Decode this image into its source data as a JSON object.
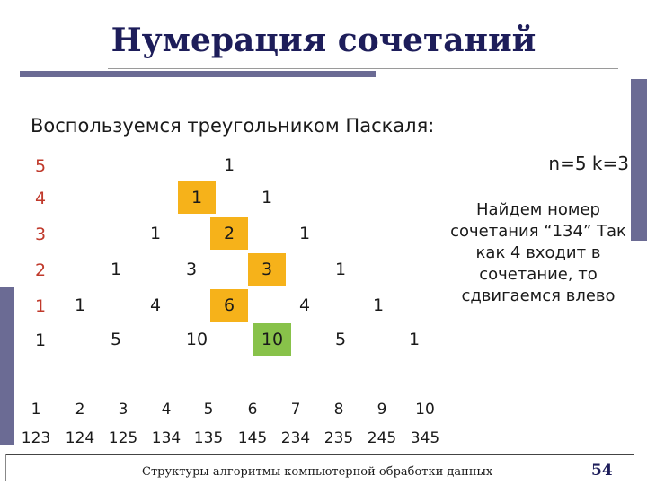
{
  "title": "Нумерация сочетаний",
  "subtitle": "Воспользуемся треугольником Паскаля:",
  "params": "n=5 k=3",
  "note": "Найдем номер сочетания “134” Так как 4 входит в сочетание, то сдвигаемся влево",
  "triangle": {
    "row_labels": [
      "5",
      "4",
      "3",
      "2",
      "1",
      "1"
    ],
    "rows": [
      [
        "1"
      ],
      [
        "1",
        "1"
      ],
      [
        "1",
        "2",
        "1"
      ],
      [
        "1",
        "3",
        "3",
        "1"
      ],
      [
        "1",
        "4",
        "6",
        "4",
        "1"
      ],
      [
        "5",
        "10",
        "10",
        "5",
        "1"
      ]
    ]
  },
  "highlight_colors": {
    "orange": "#f6b21a",
    "green": "#88c24a",
    "label_red": "#c0392b"
  },
  "index_row": [
    "1",
    "2",
    "3",
    "4",
    "5",
    "6",
    "7",
    "8",
    "9",
    "10"
  ],
  "combo_row": [
    "123",
    "124",
    "125",
    "134",
    "135",
    "145",
    "234",
    "235",
    "245",
    "345"
  ],
  "footer": "Структуры алгоритмы компьютерной обработки данных",
  "page_number": "54"
}
